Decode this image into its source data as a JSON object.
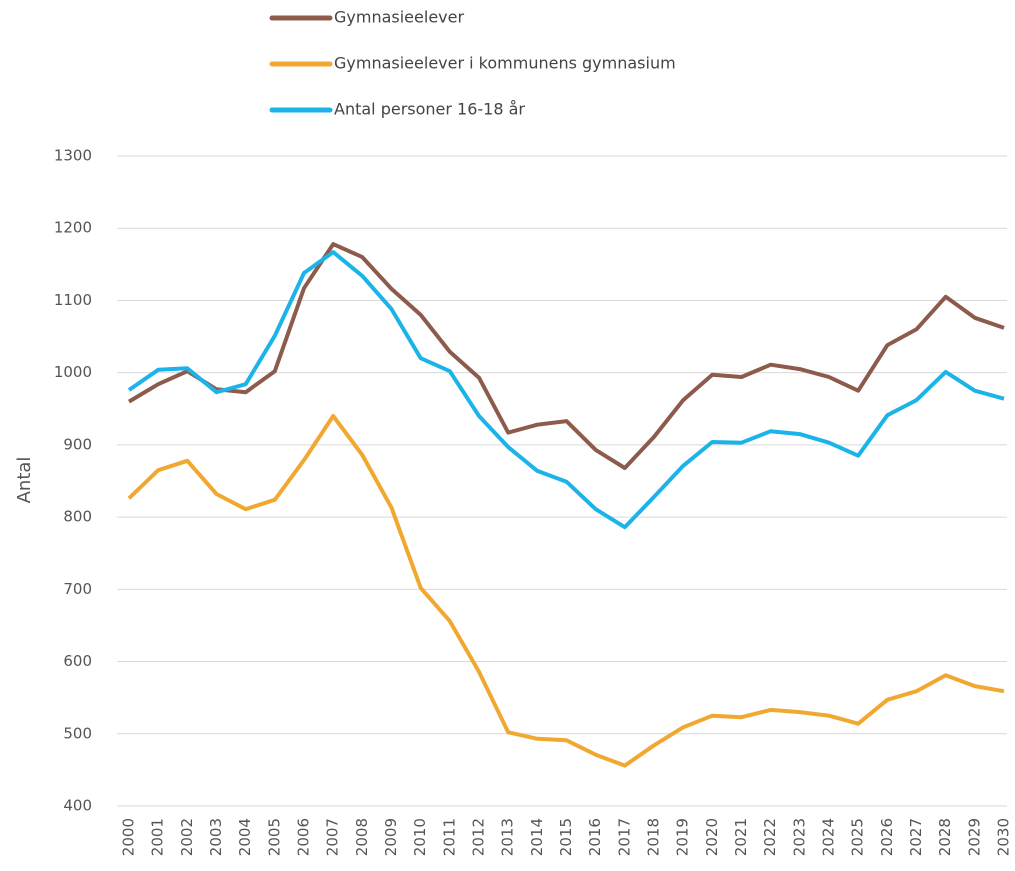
{
  "chart_data": {
    "type": "line",
    "y_label": "Antal",
    "categories": [
      "2000",
      "2001",
      "2002",
      "2003",
      "2004",
      "2005",
      "2006",
      "2007",
      "2008",
      "2009",
      "2010",
      "2011",
      "2012",
      "2013",
      "2014",
      "2015",
      "2016",
      "2017",
      "2018",
      "2019",
      "2020",
      "2021",
      "2022",
      "2023",
      "2024",
      "2025",
      "2026",
      "2027",
      "2028",
      "2029",
      "2030"
    ],
    "series": [
      {
        "name": "Gymnasieelever",
        "color": "#8c5b4b",
        "values": [
          960,
          984,
          1002,
          977,
          973,
          1002,
          1117,
          1178,
          1160,
          1116,
          1080,
          1029,
          993,
          917,
          928,
          933,
          893,
          868,
          911,
          962,
          997,
          994,
          1011,
          1005,
          994,
          975,
          1038,
          1060,
          1105,
          1076,
          1062
        ]
      },
      {
        "name": "Gymnasieelever i kommunens gymnasium",
        "color": "#f0a830",
        "values": [
          826,
          865,
          878,
          832,
          811,
          824,
          879,
          940,
          886,
          813,
          702,
          656,
          586,
          502,
          493,
          491,
          471,
          456,
          484,
          509,
          525,
          523,
          533,
          530,
          525,
          514,
          547,
          559,
          581,
          566,
          559
        ]
      },
      {
        "name": "Antal personer 16-18 år",
        "color": "#1cb4e8",
        "values": [
          976,
          1004,
          1006,
          973,
          984,
          1051,
          1138,
          1167,
          1134,
          1088,
          1020,
          1002,
          940,
          897,
          864,
          849,
          811,
          786,
          828,
          871,
          904,
          903,
          919,
          915,
          903,
          885,
          941,
          962,
          1001,
          975,
          964
        ]
      }
    ],
    "ylim": [
      400,
      1300
    ],
    "yticks": [
      400,
      500,
      600,
      700,
      800,
      900,
      1000,
      1100,
      1200,
      1300
    ],
    "grid": true,
    "legend": "top"
  }
}
